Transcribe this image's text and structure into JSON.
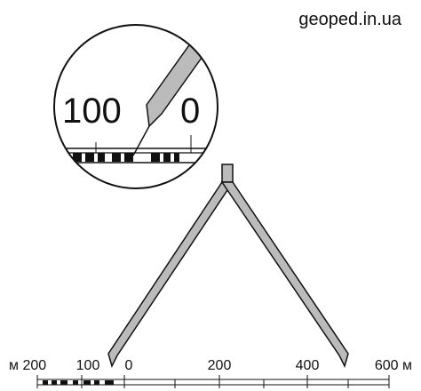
{
  "watermark": "geoped.in.ua",
  "zoom": {
    "left_label": "100",
    "right_label": "0"
  },
  "scale": {
    "labels": [
      "м 200",
      "100",
      "0",
      "200",
      "400",
      "600 м"
    ]
  }
}
